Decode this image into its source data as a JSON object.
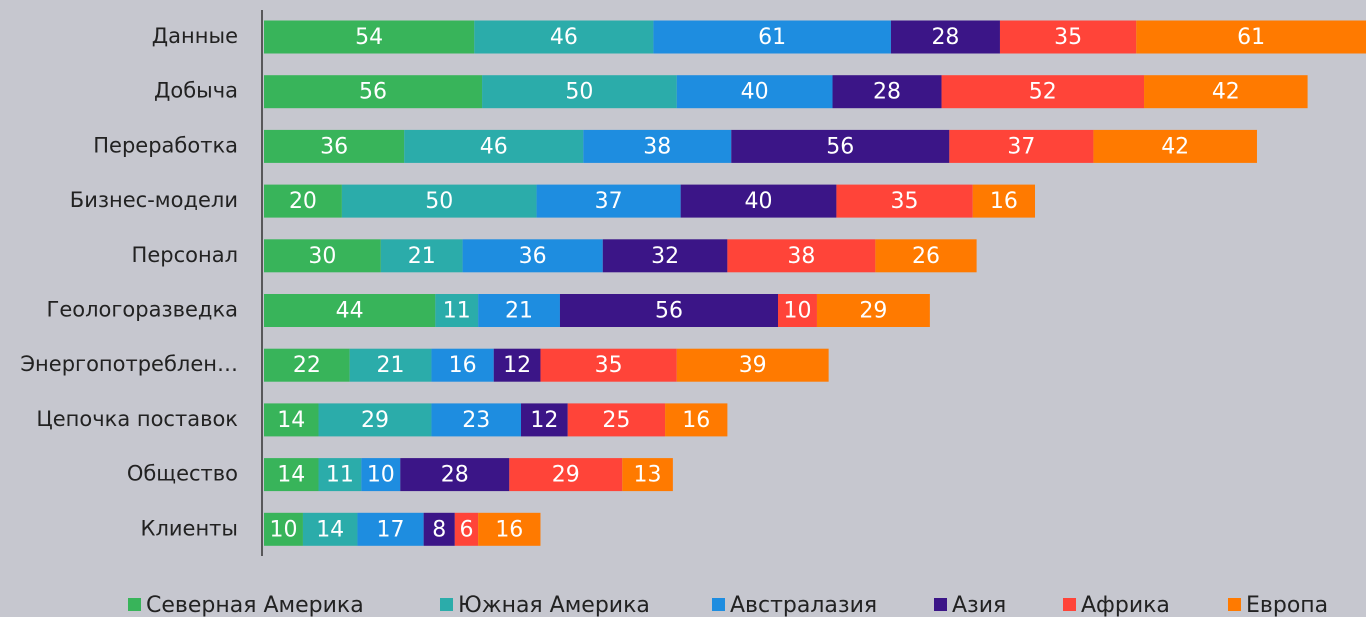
{
  "chart_data": {
    "type": "stacked-bar-horizontal",
    "categories": [
      "Данные",
      "Добыча",
      "Переработка",
      "Бизнес-модели",
      "Персонал",
      "Геологоразведка",
      "Энергопотреблен…",
      "Цепочка поставок",
      "Общество",
      "Клиенты"
    ],
    "series": [
      {
        "name": "Северная Америка",
        "color": "#38b45a",
        "values": [
          54,
          56,
          36,
          20,
          30,
          44,
          22,
          14,
          14,
          10
        ]
      },
      {
        "name": "Южная Америка",
        "color": "#2bacaa",
        "values": [
          46,
          50,
          46,
          50,
          21,
          11,
          21,
          29,
          11,
          14
        ]
      },
      {
        "name": "Австралазия",
        "color": "#1e8de0",
        "values": [
          61,
          40,
          38,
          37,
          36,
          21,
          16,
          23,
          10,
          17
        ]
      },
      {
        "name": "Азия",
        "color": "#3b1587",
        "values": [
          28,
          28,
          56,
          40,
          32,
          56,
          12,
          12,
          28,
          8
        ]
      },
      {
        "name": "Африка",
        "color": "#ff4439",
        "values": [
          35,
          52,
          37,
          35,
          38,
          10,
          35,
          25,
          29,
          6
        ]
      },
      {
        "name": "Европа",
        "color": "#ff7a00",
        "values": [
          61,
          42,
          42,
          16,
          26,
          29,
          39,
          16,
          13,
          16
        ]
      }
    ],
    "xlim": [
      0,
      283
    ],
    "legend": "bottom"
  }
}
